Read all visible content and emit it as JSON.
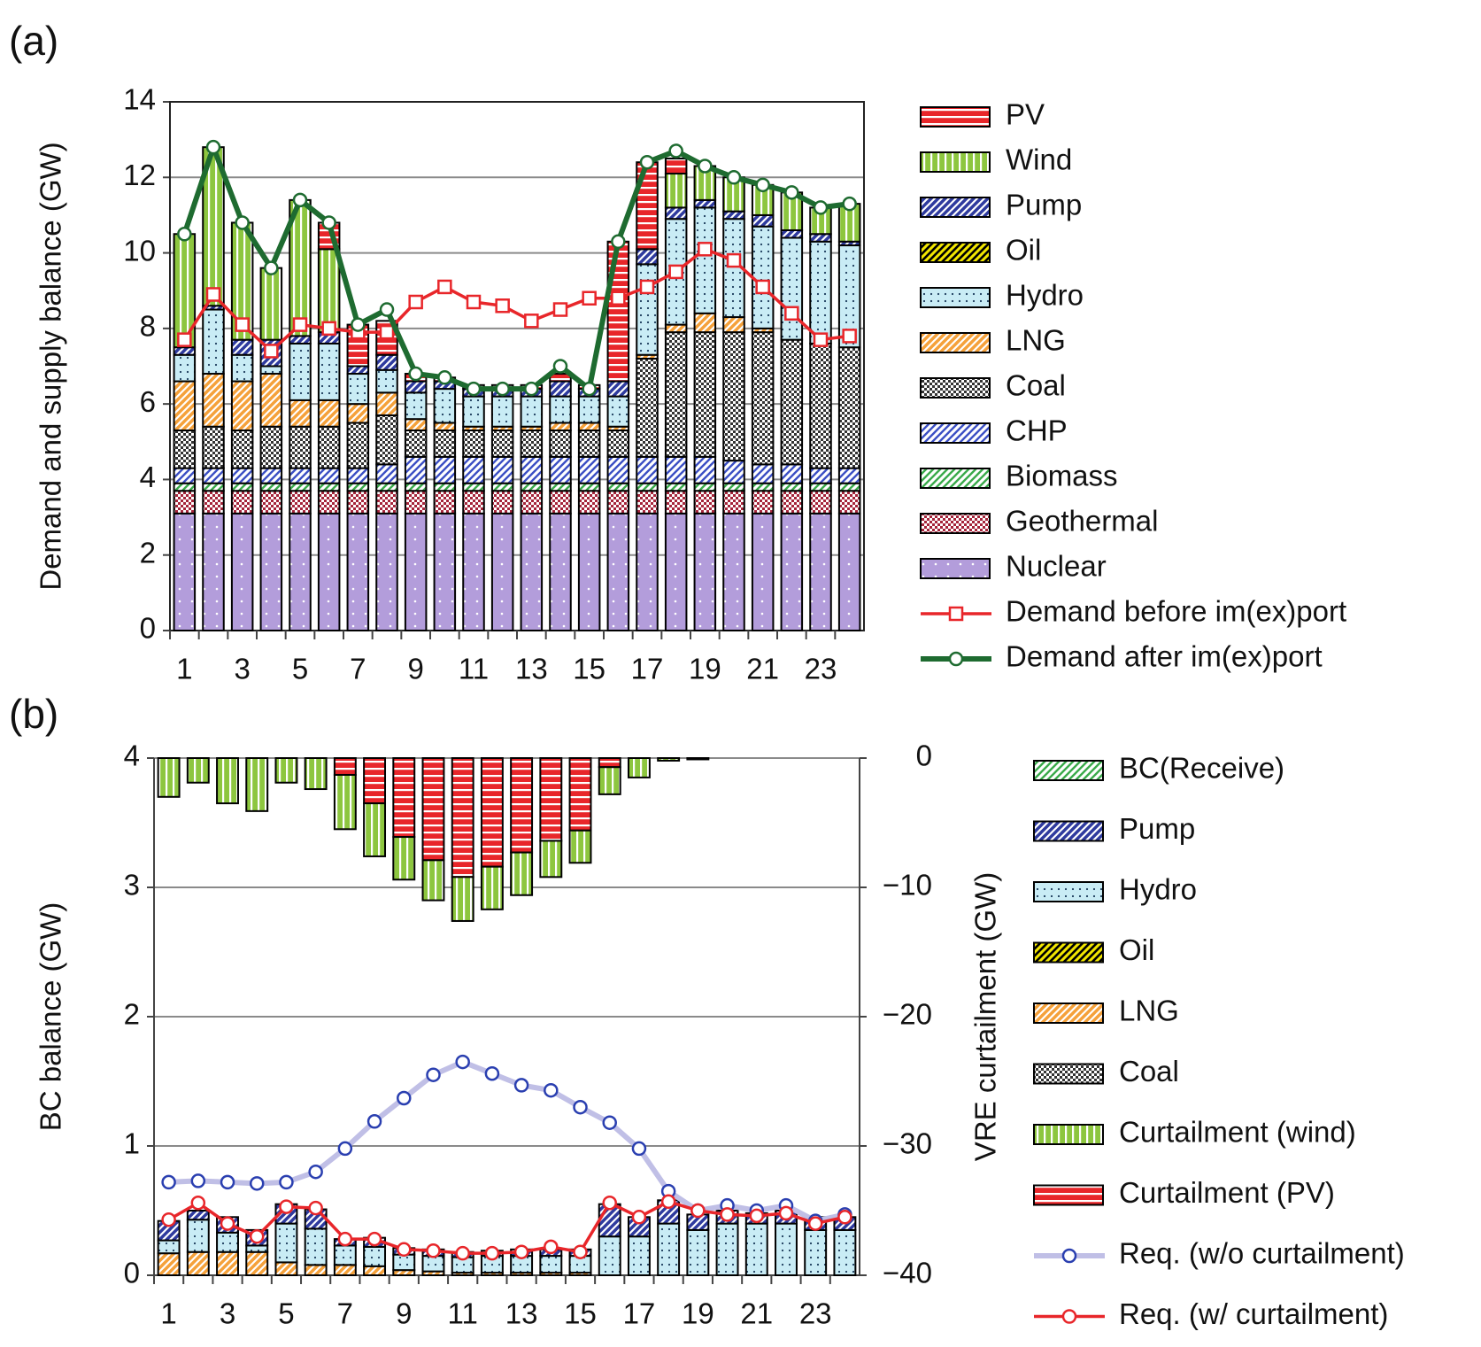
{
  "chart_data": [
    {
      "type": "bar",
      "panel_label": "(a)",
      "y_label": "Demand and supply balance (GW)",
      "categories": [
        1,
        null,
        3,
        null,
        5,
        null,
        7,
        null,
        9,
        null,
        11,
        null,
        13,
        null,
        15,
        null,
        17,
        null,
        19,
        null,
        21,
        null,
        23,
        null
      ],
      "ylim": [
        0,
        14
      ],
      "yticks": [
        0,
        2,
        4,
        6,
        8,
        10,
        12,
        14
      ],
      "grid": true,
      "frame": true,
      "series": [
        {
          "name": "PV",
          "color": "#e8262a",
          "hatch": "hlines",
          "values": [
            0,
            0,
            0,
            0,
            0,
            0.7,
            1.1,
            0.9,
            0.2,
            0.1,
            0.1,
            0.1,
            0.1,
            0.2,
            0.1,
            3.7,
            2.3,
            0.4,
            0,
            0,
            0,
            0,
            0,
            0
          ]
        },
        {
          "name": "Wind",
          "color": "#8dc63f",
          "hatch": "vlines",
          "values": [
            3.0,
            4.2,
            3.1,
            1.9,
            3.6,
            2.2,
            0,
            0,
            0,
            0,
            0,
            0,
            0,
            0,
            0,
            0,
            0,
            0.9,
            0.9,
            0.9,
            0.8,
            1.0,
            0.7,
            1.0
          ]
        },
        {
          "name": "Pump",
          "color": "#2e3a9e",
          "hatch": "diag",
          "values": [
            0.2,
            0.1,
            0.4,
            0.7,
            0.2,
            0.3,
            0.2,
            0.4,
            0.3,
            0.2,
            0.2,
            0.2,
            0.2,
            0.4,
            0.2,
            0.4,
            0.4,
            0.3,
            0.2,
            0.2,
            0.3,
            0.2,
            0.2,
            0.1
          ]
        },
        {
          "name": "Oil",
          "color": "#f2e600",
          "hatch": "diag-dark",
          "values": [
            0,
            0,
            0,
            0,
            0,
            0,
            0,
            0,
            0,
            0,
            0,
            0,
            0,
            0,
            0,
            0,
            0,
            0,
            0,
            0,
            0,
            0,
            0,
            0
          ]
        },
        {
          "name": "Hydro",
          "color": "#c9ecf5",
          "hatch": "dots",
          "values": [
            0.7,
            1.7,
            0.7,
            0.2,
            1.5,
            1.5,
            0.8,
            0.6,
            0.7,
            0.9,
            0.8,
            0.8,
            0.8,
            0.7,
            0.7,
            0.8,
            2.4,
            2.8,
            2.8,
            2.6,
            2.7,
            2.7,
            2.7,
            2.7
          ]
        },
        {
          "name": "LNG",
          "color": "#f5a13a",
          "hatch": "diag",
          "values": [
            1.3,
            1.4,
            1.3,
            1.4,
            0.7,
            0.7,
            0.5,
            0.6,
            0.3,
            0.2,
            0.1,
            0.1,
            0.1,
            0.2,
            0.2,
            0.1,
            0.1,
            0.2,
            0.5,
            0.4,
            0.1,
            0,
            0,
            0
          ]
        },
        {
          "name": "Coal",
          "color": "#333333",
          "hatch": "checker",
          "values": [
            1.0,
            1.1,
            1.0,
            1.1,
            1.1,
            1.1,
            1.2,
            1.3,
            0.7,
            0.7,
            0.7,
            0.7,
            0.7,
            0.7,
            0.7,
            0.7,
            2.6,
            3.3,
            3.3,
            3.4,
            3.5,
            3.3,
            3.3,
            3.2
          ]
        },
        {
          "name": "CHP",
          "color": "#3b4fc4",
          "hatch": "diag-light",
          "values": [
            0.4,
            0.4,
            0.4,
            0.4,
            0.4,
            0.4,
            0.4,
            0.5,
            0.7,
            0.7,
            0.7,
            0.7,
            0.7,
            0.7,
            0.7,
            0.7,
            0.7,
            0.7,
            0.7,
            0.6,
            0.5,
            0.5,
            0.4,
            0.4
          ]
        },
        {
          "name": "Biomass",
          "color": "#3aaa4a",
          "hatch": "diag-light",
          "values": [
            0.2,
            0.2,
            0.2,
            0.2,
            0.2,
            0.2,
            0.2,
            0.2,
            0.2,
            0.2,
            0.2,
            0.2,
            0.2,
            0.2,
            0.2,
            0.2,
            0.2,
            0.2,
            0.2,
            0.2,
            0.2,
            0.2,
            0.2,
            0.2
          ]
        },
        {
          "name": "Geothermal",
          "color": "#a5243a",
          "hatch": "checker",
          "values": [
            0.6,
            0.6,
            0.6,
            0.6,
            0.6,
            0.6,
            0.6,
            0.6,
            0.6,
            0.6,
            0.6,
            0.6,
            0.6,
            0.6,
            0.6,
            0.6,
            0.6,
            0.6,
            0.6,
            0.6,
            0.6,
            0.6,
            0.6,
            0.6
          ]
        },
        {
          "name": "Nuclear",
          "color": "#b39ddb",
          "hatch": "dots-light",
          "values": [
            3.1,
            3.1,
            3.1,
            3.1,
            3.1,
            3.1,
            3.1,
            3.1,
            3.1,
            3.1,
            3.1,
            3.1,
            3.1,
            3.1,
            3.1,
            3.1,
            3.1,
            3.1,
            3.1,
            3.1,
            3.1,
            3.1,
            3.1,
            3.1
          ]
        },
        {
          "name": "Demand before im(ex)port",
          "type": "line",
          "color": "#e8262a",
          "marker": "square",
          "marker_color": "#e8262a",
          "values": [
            7.7,
            8.9,
            8.1,
            7.4,
            8.1,
            8.0,
            7.9,
            7.9,
            8.7,
            9.1,
            8.7,
            8.6,
            8.2,
            8.5,
            8.8,
            8.8,
            9.1,
            9.5,
            10.1,
            9.8,
            9.1,
            8.4,
            7.7,
            7.8
          ]
        },
        {
          "name": "Demand after im(ex)port",
          "type": "line",
          "color": "#1e6b30",
          "marker": "circle",
          "marker_color": "#1e6b30",
          "values": [
            10.5,
            12.8,
            10.8,
            9.6,
            11.4,
            10.8,
            8.1,
            8.5,
            6.8,
            6.7,
            6.4,
            6.4,
            6.4,
            7.0,
            6.4,
            10.3,
            12.4,
            12.7,
            12.3,
            12.0,
            11.8,
            11.6,
            11.2,
            11.3
          ]
        }
      ]
    },
    {
      "type": "bar",
      "panel_label": "(b)",
      "y_label": "BC balance (GW)",
      "y2_label": "VRE curtailment (GW)",
      "categories": [
        1,
        null,
        3,
        null,
        5,
        null,
        7,
        null,
        9,
        null,
        11,
        null,
        13,
        null,
        15,
        null,
        17,
        null,
        19,
        null,
        21,
        null,
        23,
        null
      ],
      "ylim": [
        0,
        4
      ],
      "yticks": [
        0,
        1,
        2,
        3,
        4
      ],
      "y2lim": [
        -40,
        0
      ],
      "y2ticks": [
        {
          "value": -40,
          "label": "−40"
        },
        {
          "value": -30,
          "label": "−30"
        },
        {
          "value": -20,
          "label": "−20"
        },
        {
          "value": -10,
          "label": "−10"
        },
        0
      ],
      "grid": true,
      "frame": false,
      "series": [
        {
          "name": "BC(Receive)",
          "color": "#3aaa4a",
          "hatch": "diag-light",
          "values": [
            0,
            0,
            0,
            0,
            0,
            0,
            0,
            0,
            0,
            0,
            0,
            0,
            0,
            0,
            0,
            0,
            0,
            0,
            0,
            0,
            0,
            0,
            0,
            0
          ]
        },
        {
          "name": "Pump",
          "color": "#2e3a9e",
          "hatch": "diag",
          "values": [
            0.15,
            0.07,
            0.12,
            0.12,
            0.15,
            0.15,
            0.05,
            0.07,
            0.05,
            0.05,
            0.04,
            0.04,
            0.05,
            0.05,
            0.05,
            0.25,
            0.15,
            0.18,
            0.12,
            0.1,
            0.08,
            0.1,
            0.1,
            0.1
          ]
        },
        {
          "name": "Hydro",
          "color": "#c9ecf5",
          "hatch": "dots",
          "values": [
            0.1,
            0.25,
            0.15,
            0.05,
            0.3,
            0.28,
            0.15,
            0.15,
            0.12,
            0.12,
            0.12,
            0.13,
            0.13,
            0.13,
            0.13,
            0.3,
            0.3,
            0.4,
            0.35,
            0.4,
            0.4,
            0.4,
            0.35,
            0.35
          ]
        },
        {
          "name": "Oil",
          "color": "#f2e600",
          "hatch": "diag-dark",
          "values": [
            0,
            0,
            0,
            0,
            0,
            0,
            0,
            0,
            0,
            0,
            0,
            0,
            0,
            0,
            0,
            0,
            0,
            0,
            0,
            0,
            0,
            0,
            0,
            0
          ]
        },
        {
          "name": "LNG",
          "color": "#f5a13a",
          "hatch": "diag",
          "values": [
            0.17,
            0.18,
            0.18,
            0.18,
            0.1,
            0.08,
            0.08,
            0.07,
            0.04,
            0.03,
            0.02,
            0.02,
            0.02,
            0.02,
            0.02,
            0,
            0,
            0,
            0,
            0,
            0,
            0,
            0,
            0
          ]
        },
        {
          "name": "Coal",
          "color": "#333333",
          "hatch": "checker",
          "values": [
            0,
            0,
            0,
            0,
            0,
            0,
            0,
            0,
            0,
            0,
            0,
            0,
            0,
            0,
            0,
            0,
            0,
            0,
            0,
            0,
            0,
            0,
            0,
            0
          ]
        },
        {
          "name": "Curtailment (wind)",
          "axis": "y2",
          "color": "#8dc63f",
          "hatch": "vlines",
          "values": [
            -3.0,
            -1.9,
            -3.5,
            -4.1,
            -1.9,
            -2.4,
            -4.2,
            -4.1,
            -3.3,
            -3.1,
            -3.4,
            -3.3,
            -3.3,
            -2.8,
            -2.5,
            -2.1,
            -1.5,
            -0.2,
            -0.1,
            0,
            0,
            0,
            0,
            0
          ]
        },
        {
          "name": "Curtailment (PV)",
          "axis": "y2",
          "color": "#e8262a",
          "hatch": "hlines",
          "values": [
            0,
            0,
            0,
            0,
            0,
            0,
            -1.3,
            -3.5,
            -6.1,
            -7.9,
            -9.2,
            -8.4,
            -7.3,
            -6.4,
            -5.6,
            -0.7,
            0,
            0,
            0,
            0,
            0,
            0,
            0,
            0
          ]
        },
        {
          "name": "Req. (w/o curtailment)",
          "type": "line",
          "color": "#c0bfe6",
          "marker": "circle",
          "marker_color": "#2a3fb0",
          "values": [
            0.72,
            0.73,
            0.72,
            0.71,
            0.72,
            0.8,
            0.98,
            1.19,
            1.37,
            1.55,
            1.65,
            1.56,
            1.47,
            1.43,
            1.3,
            1.18,
            0.98,
            0.65,
            0.5,
            0.54,
            0.5,
            0.54,
            0.42,
            0.47
          ]
        },
        {
          "name": "Req. (w/ curtailment)",
          "type": "line",
          "color": "#e8262a",
          "marker": "circle",
          "marker_color": "#e8262a",
          "values": [
            0.43,
            0.56,
            0.4,
            0.3,
            0.53,
            0.52,
            0.28,
            0.28,
            0.2,
            0.19,
            0.17,
            0.17,
            0.18,
            0.22,
            0.18,
            0.56,
            0.45,
            0.57,
            0.5,
            0.47,
            0.46,
            0.48,
            0.4,
            0.45
          ]
        }
      ]
    }
  ]
}
